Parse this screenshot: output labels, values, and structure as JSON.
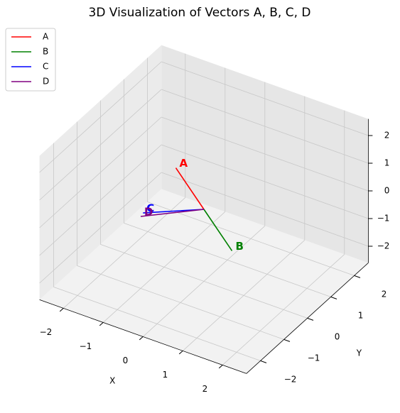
{
  "chart_data": {
    "type": "quiver3d",
    "title": "3D Visualization of Vectors A, B, C, D",
    "xlabel": "X",
    "ylabel": "Y",
    "xlim": [
      -2.6,
      2.6
    ],
    "ylim": [
      -2.6,
      2.6
    ],
    "zlim": [
      -2.6,
      2.6
    ],
    "xticks": [
      {
        "value": -2,
        "label": "−2"
      },
      {
        "value": -1,
        "label": "−1"
      },
      0,
      1,
      2
    ],
    "yticks": [
      {
        "value": -2,
        "label": "−2"
      },
      {
        "value": -1,
        "label": "−1"
      },
      0,
      1,
      2
    ],
    "zticks": [
      {
        "value": -2,
        "label": "−2"
      },
      {
        "value": -1,
        "label": "−1"
      },
      0,
      1,
      2
    ],
    "grid": true,
    "legend": "upper left",
    "series": [
      {
        "name": "A",
        "color": "#ff0000",
        "vector": [
          -1,
          0.5,
          0.6
        ]
      },
      {
        "name": "B",
        "color": "#008000",
        "vector": [
          1,
          -0.5,
          -0.6
        ]
      },
      {
        "name": "C",
        "color": "#0000ff",
        "vector": [
          -1,
          -0.9,
          0.05
        ]
      },
      {
        "name": "D",
        "color": "#800080",
        "vector": [
          -1,
          -1,
          0
        ]
      }
    ]
  }
}
